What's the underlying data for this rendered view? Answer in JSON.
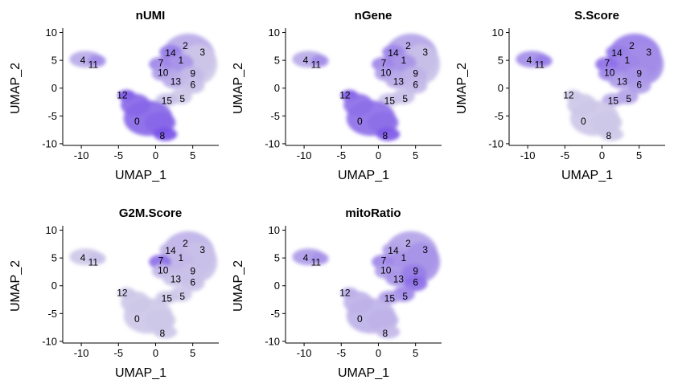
{
  "chart_data": [
    {
      "type": "scatter",
      "title": "nUMI",
      "xlabel": "UMAP_1",
      "ylabel": "UMAP_2",
      "xlim": [
        -12.5,
        8.5
      ],
      "ylim": [
        -10.3,
        10.8
      ],
      "xticks": [
        -10,
        -5,
        0,
        5
      ],
      "yticks": [
        -10,
        -5,
        0,
        5,
        10
      ],
      "tick_labels_x": [
        "-10",
        "-5",
        "0",
        "5"
      ],
      "tick_labels_y": [
        "-10",
        "-5",
        "0",
        "5",
        "10"
      ],
      "grid": false,
      "colors": {
        "low": "#d9d7e8",
        "high": "#6d42e8"
      },
      "cluster_labels": [
        {
          "text": "2",
          "x": 4.0,
          "y": 7.6
        },
        {
          "text": "3",
          "x": 6.3,
          "y": 6.5
        },
        {
          "text": "14",
          "x": 2.0,
          "y": 6.3
        },
        {
          "text": "7",
          "x": 0.7,
          "y": 4.5
        },
        {
          "text": "1",
          "x": 3.4,
          "y": 5.0
        },
        {
          "text": "10",
          "x": 1.0,
          "y": 2.8
        },
        {
          "text": "9",
          "x": 5.0,
          "y": 2.6
        },
        {
          "text": "13",
          "x": 2.7,
          "y": 1.2
        },
        {
          "text": "6",
          "x": 5.0,
          "y": 0.6
        },
        {
          "text": "15",
          "x": 1.5,
          "y": -2.3
        },
        {
          "text": "5",
          "x": 3.6,
          "y": -1.9
        },
        {
          "text": "4",
          "x": -9.8,
          "y": 5.0
        },
        {
          "text": "11",
          "x": -8.4,
          "y": 4.2
        },
        {
          "text": "12",
          "x": -4.5,
          "y": -1.3
        },
        {
          "text": "0",
          "x": -2.5,
          "y": -6.0
        },
        {
          "text": "8",
          "x": 0.9,
          "y": -8.6
        }
      ],
      "cluster_values": {
        "0": 0.75,
        "1": 0.45,
        "2": 0.3,
        "3": 0.1,
        "4": 0.3,
        "5": 0.1,
        "6": 0.15,
        "7": 0.55,
        "8": 0.9,
        "9": 0.2,
        "10": 0.4,
        "11": 0.5,
        "12": 0.9,
        "13": 0.3,
        "14": 0.6,
        "15": 0.15
      }
    },
    {
      "type": "scatter",
      "title": "nGene",
      "xlabel": "UMAP_1",
      "ylabel": "UMAP_2",
      "xlim": [
        -12.5,
        8.5
      ],
      "ylim": [
        -10.3,
        10.8
      ],
      "xticks": [
        -10,
        -5,
        0,
        5
      ],
      "yticks": [
        -10,
        -5,
        0,
        5,
        10
      ],
      "tick_labels_x": [
        "-10",
        "-5",
        "0",
        "5"
      ],
      "tick_labels_y": [
        "-10",
        "-5",
        "0",
        "5",
        "10"
      ],
      "grid": false,
      "colors": {
        "low": "#d9d7e8",
        "high": "#6d42e8"
      },
      "cluster_labels": [
        {
          "text": "2",
          "x": 4.0,
          "y": 7.6
        },
        {
          "text": "3",
          "x": 6.3,
          "y": 6.5
        },
        {
          "text": "14",
          "x": 2.0,
          "y": 6.3
        },
        {
          "text": "7",
          "x": 0.7,
          "y": 4.5
        },
        {
          "text": "1",
          "x": 3.4,
          "y": 5.0
        },
        {
          "text": "10",
          "x": 1.0,
          "y": 2.8
        },
        {
          "text": "9",
          "x": 5.0,
          "y": 2.6
        },
        {
          "text": "13",
          "x": 2.7,
          "y": 1.2
        },
        {
          "text": "6",
          "x": 5.0,
          "y": 0.6
        },
        {
          "text": "15",
          "x": 1.5,
          "y": -2.3
        },
        {
          "text": "5",
          "x": 3.6,
          "y": -1.9
        },
        {
          "text": "4",
          "x": -9.8,
          "y": 5.0
        },
        {
          "text": "11",
          "x": -8.4,
          "y": 4.2
        },
        {
          "text": "12",
          "x": -4.5,
          "y": -1.3
        },
        {
          "text": "0",
          "x": -2.5,
          "y": -6.0
        },
        {
          "text": "8",
          "x": 0.9,
          "y": -8.6
        }
      ],
      "cluster_values": {
        "0": 0.7,
        "1": 0.45,
        "2": 0.35,
        "3": 0.15,
        "4": 0.3,
        "5": 0.15,
        "6": 0.2,
        "7": 0.55,
        "8": 0.85,
        "9": 0.25,
        "10": 0.4,
        "11": 0.5,
        "12": 0.85,
        "13": 0.3,
        "14": 0.55,
        "15": 0.15
      }
    },
    {
      "type": "scatter",
      "title": "S.Score",
      "xlabel": "UMAP_1",
      "ylabel": "UMAP_2",
      "xlim": [
        -12.5,
        8.5
      ],
      "ylim": [
        -10.3,
        10.8
      ],
      "xticks": [
        -10,
        -5,
        0,
        5
      ],
      "yticks": [
        -10,
        -5,
        0,
        5,
        10
      ],
      "tick_labels_x": [
        "-10",
        "-5",
        "0",
        "5"
      ],
      "tick_labels_y": [
        "-10",
        "-5",
        "0",
        "5",
        "10"
      ],
      "grid": false,
      "colors": {
        "low": "#d9d7e8",
        "high": "#6d42e8"
      },
      "cluster_labels": [
        {
          "text": "2",
          "x": 4.0,
          "y": 7.6
        },
        {
          "text": "3",
          "x": 6.3,
          "y": 6.5
        },
        {
          "text": "14",
          "x": 2.0,
          "y": 6.3
        },
        {
          "text": "7",
          "x": 0.7,
          "y": 4.5
        },
        {
          "text": "1",
          "x": 3.4,
          "y": 5.0
        },
        {
          "text": "10",
          "x": 1.0,
          "y": 2.8
        },
        {
          "text": "9",
          "x": 5.0,
          "y": 2.6
        },
        {
          "text": "13",
          "x": 2.7,
          "y": 1.2
        },
        {
          "text": "6",
          "x": 5.0,
          "y": 0.6
        },
        {
          "text": "15",
          "x": 1.5,
          "y": -2.3
        },
        {
          "text": "5",
          "x": 3.6,
          "y": -1.9
        },
        {
          "text": "4",
          "x": -9.8,
          "y": 5.0
        },
        {
          "text": "11",
          "x": -8.4,
          "y": 4.2
        },
        {
          "text": "12",
          "x": -4.5,
          "y": -1.3
        },
        {
          "text": "0",
          "x": -2.5,
          "y": -6.0
        },
        {
          "text": "8",
          "x": 0.9,
          "y": -8.6
        }
      ],
      "cluster_values": {
        "0": 0.1,
        "1": 0.55,
        "2": 0.6,
        "3": 0.5,
        "4": 0.5,
        "5": 0.35,
        "6": 0.4,
        "7": 0.7,
        "8": 0.1,
        "9": 0.45,
        "10": 0.55,
        "11": 0.6,
        "12": 0.1,
        "13": 0.4,
        "14": 0.6,
        "15": 0.3
      }
    },
    {
      "type": "scatter",
      "title": "G2M.Score",
      "xlabel": "UMAP_1",
      "ylabel": "UMAP_2",
      "xlim": [
        -12.5,
        8.5
      ],
      "ylim": [
        -10.3,
        10.8
      ],
      "xticks": [
        -10,
        -5,
        0,
        5
      ],
      "yticks": [
        -10,
        -5,
        0,
        5,
        10
      ],
      "tick_labels_x": [
        "-10",
        "-5",
        "0",
        "5"
      ],
      "tick_labels_y": [
        "-10",
        "-5",
        "0",
        "5",
        "10"
      ],
      "grid": false,
      "colors": {
        "low": "#d9d7e8",
        "high": "#6d42e8"
      },
      "cluster_labels": [
        {
          "text": "2",
          "x": 4.0,
          "y": 7.6
        },
        {
          "text": "3",
          "x": 6.3,
          "y": 6.5
        },
        {
          "text": "14",
          "x": 2.0,
          "y": 6.3
        },
        {
          "text": "7",
          "x": 0.7,
          "y": 4.5
        },
        {
          "text": "1",
          "x": 3.4,
          "y": 5.0
        },
        {
          "text": "10",
          "x": 1.0,
          "y": 2.8
        },
        {
          "text": "9",
          "x": 5.0,
          "y": 2.6
        },
        {
          "text": "13",
          "x": 2.7,
          "y": 1.2
        },
        {
          "text": "6",
          "x": 5.0,
          "y": 0.6
        },
        {
          "text": "15",
          "x": 1.5,
          "y": -2.3
        },
        {
          "text": "5",
          "x": 3.6,
          "y": -1.9
        },
        {
          "text": "4",
          "x": -9.8,
          "y": 5.0
        },
        {
          "text": "11",
          "x": -8.4,
          "y": 4.2
        },
        {
          "text": "12",
          "x": -4.5,
          "y": -1.3
        },
        {
          "text": "0",
          "x": -2.5,
          "y": -6.0
        },
        {
          "text": "8",
          "x": 0.9,
          "y": -8.6
        }
      ],
      "cluster_values": {
        "0": 0.1,
        "1": 0.2,
        "2": 0.25,
        "3": 0.15,
        "4": 0.1,
        "5": 0.1,
        "6": 0.15,
        "7": 0.7,
        "8": 0.1,
        "9": 0.15,
        "10": 0.2,
        "11": 0.15,
        "12": 0.1,
        "13": 0.15,
        "14": 0.2,
        "15": 0.1
      }
    },
    {
      "type": "scatter",
      "title": "mitoRatio",
      "xlabel": "UMAP_1",
      "ylabel": "UMAP_2",
      "xlim": [
        -12.5,
        8.5
      ],
      "ylim": [
        -10.3,
        10.8
      ],
      "xticks": [
        -10,
        -5,
        0,
        5
      ],
      "yticks": [
        -10,
        -5,
        0,
        5,
        10
      ],
      "tick_labels_x": [
        "-10",
        "-5",
        "0",
        "5"
      ],
      "tick_labels_y": [
        "-10",
        "-5",
        "0",
        "5",
        "10"
      ],
      "grid": false,
      "colors": {
        "low": "#d9d7e8",
        "high": "#6d42e8"
      },
      "cluster_labels": [
        {
          "text": "2",
          "x": 4.0,
          "y": 7.6
        },
        {
          "text": "3",
          "x": 6.3,
          "y": 6.5
        },
        {
          "text": "14",
          "x": 2.0,
          "y": 6.3
        },
        {
          "text": "7",
          "x": 0.7,
          "y": 4.5
        },
        {
          "text": "1",
          "x": 3.4,
          "y": 5.0
        },
        {
          "text": "10",
          "x": 1.0,
          "y": 2.8
        },
        {
          "text": "9",
          "x": 5.0,
          "y": 2.6
        },
        {
          "text": "13",
          "x": 2.7,
          "y": 1.2
        },
        {
          "text": "6",
          "x": 5.0,
          "y": 0.6
        },
        {
          "text": "15",
          "x": 1.5,
          "y": -2.3
        },
        {
          "text": "5",
          "x": 3.6,
          "y": -1.9
        },
        {
          "text": "4",
          "x": -9.8,
          "y": 5.0
        },
        {
          "text": "11",
          "x": -8.4,
          "y": 4.2
        },
        {
          "text": "12",
          "x": -4.5,
          "y": -1.3
        },
        {
          "text": "0",
          "x": -2.5,
          "y": -6.0
        },
        {
          "text": "8",
          "x": 0.9,
          "y": -8.6
        }
      ],
      "cluster_values": {
        "0": 0.25,
        "1": 0.45,
        "2": 0.35,
        "3": 0.45,
        "4": 0.4,
        "5": 0.55,
        "6": 0.7,
        "7": 0.55,
        "8": 0.2,
        "9": 0.6,
        "10": 0.4,
        "11": 0.45,
        "12": 0.3,
        "13": 0.45,
        "14": 0.35,
        "15": 0.4
      }
    }
  ]
}
